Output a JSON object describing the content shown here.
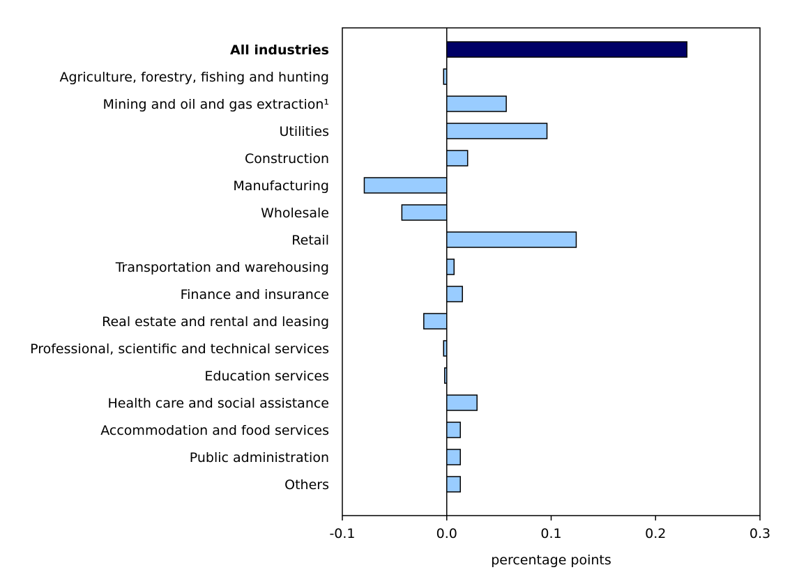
{
  "chart_data": {
    "type": "bar",
    "orientation": "horizontal",
    "title": "",
    "xlabel": "percentage points",
    "ylabel": "",
    "xlim": [
      -0.1,
      0.3
    ],
    "xticks": [
      -0.1,
      0.0,
      0.1,
      0.2,
      0.3
    ],
    "xtick_labels": [
      "-0.1",
      "0.0",
      "0.1",
      "0.2",
      "0.3"
    ],
    "grid": false,
    "categories": [
      "All industries",
      "Agriculture, forestry, fishing and hunting",
      "Mining and oil and gas extraction¹",
      "Utilities",
      "Construction",
      "Manufacturing",
      "Wholesale",
      "Retail",
      "Transportation and warehousing",
      "Finance and insurance",
      "Real estate and rental and leasing",
      "Professional, scientific and technical services",
      "Education services",
      "Health care and social assistance",
      "Accommodation and food services",
      "Public administration",
      "Others"
    ],
    "values": [
      0.23,
      -0.003,
      0.057,
      0.096,
      0.02,
      -0.079,
      -0.043,
      0.124,
      0.007,
      0.015,
      -0.022,
      -0.003,
      -0.002,
      0.029,
      0.013,
      0.013,
      0.013
    ],
    "highlight_index": 0,
    "colors": {
      "highlight": "#000066",
      "bar": "#99ccff",
      "outline": "#000000"
    }
  }
}
